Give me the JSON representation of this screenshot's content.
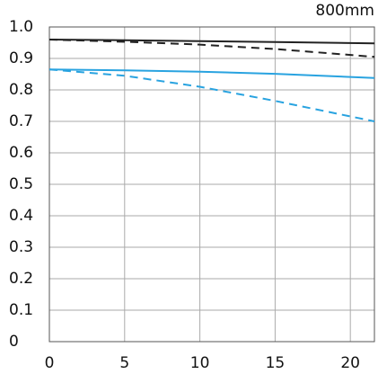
{
  "chart_data": {
    "type": "line",
    "title": "800mm",
    "x": [
      0,
      5,
      10,
      15,
      21.6
    ],
    "series": [
      {
        "color": "#222222",
        "style": "solid",
        "values": [
          0.96,
          0.958,
          0.955,
          0.952,
          0.948
        ]
      },
      {
        "color": "#222222",
        "style": "dashed",
        "values": [
          0.96,
          0.953,
          0.944,
          0.93,
          0.905
        ]
      },
      {
        "color": "#29a3e0",
        "style": "solid",
        "values": [
          0.865,
          0.862,
          0.858,
          0.851,
          0.838
        ]
      },
      {
        "color": "#29a3e0",
        "style": "dashed",
        "values": [
          0.865,
          0.845,
          0.81,
          0.765,
          0.7
        ]
      }
    ],
    "xlim": [
      0,
      21.6
    ],
    "xticks": [
      0,
      5,
      10,
      15,
      20
    ],
    "ylim": [
      0,
      1
    ],
    "yticks": [
      0,
      0.1,
      0.2,
      0.3,
      0.4,
      0.5,
      0.6,
      0.7,
      0.8,
      0.9,
      {
        "value": 1,
        "label": "1.0"
      }
    ],
    "grid": true
  }
}
